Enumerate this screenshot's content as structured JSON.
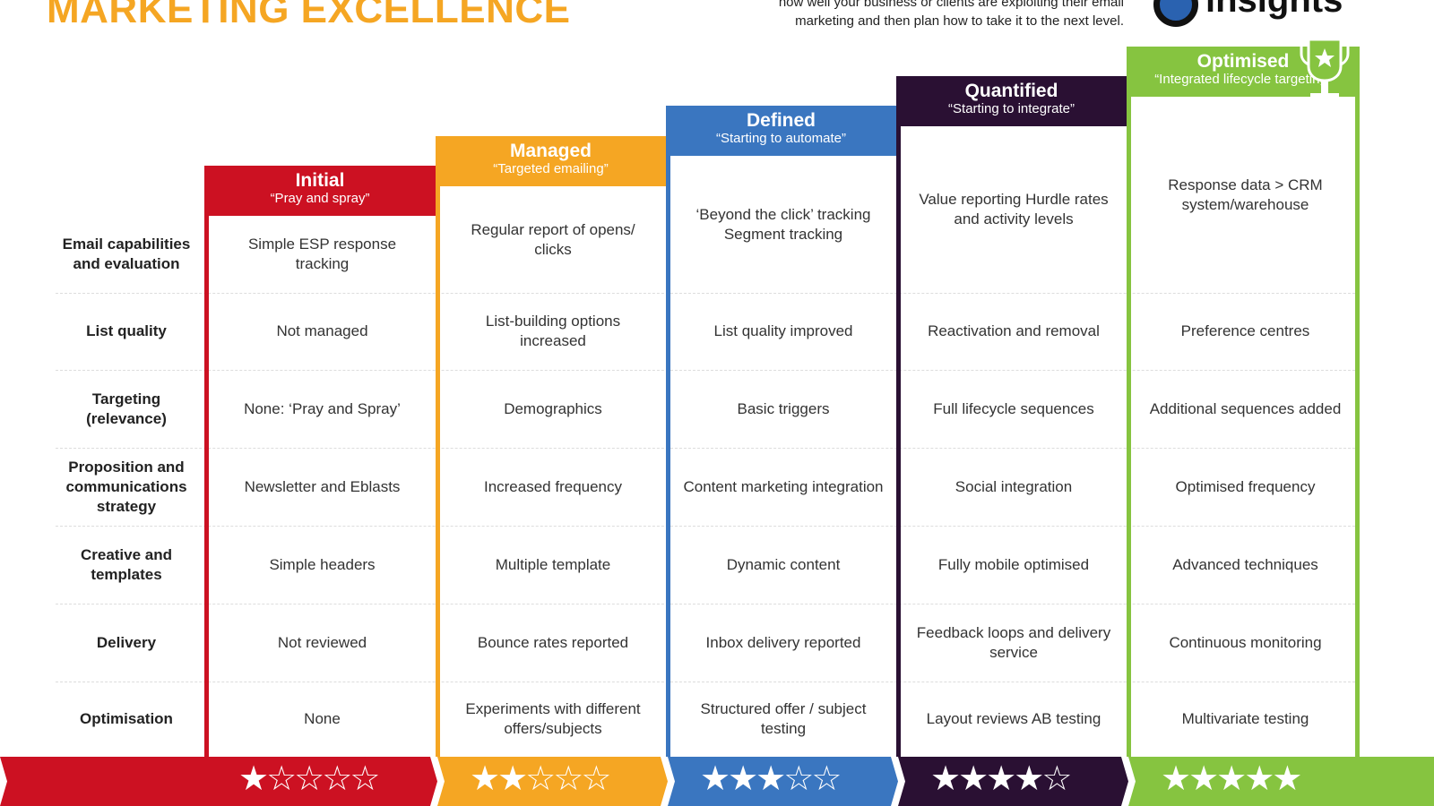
{
  "title": "MARKETING EXCELLENCE",
  "intro": [
    "how well your business or clients are exploiting their email",
    "marketing and then plan how to take it to the next level."
  ],
  "logo_text": "insights",
  "colors": {
    "initial": "#cc1122",
    "managed": "#f5a623",
    "defined": "#3a76c0",
    "quantified": "#2a1033",
    "optimised": "#86c440"
  },
  "rows": [
    "Email capabilities and evaluation",
    "List quality",
    "Targeting (relevance)",
    "Proposition and communications strategy",
    "Creative and templates",
    "Delivery",
    "Optimisation"
  ],
  "levels": [
    {
      "name": "Initial",
      "subtitle": "“Pray and spray”",
      "stars": 1,
      "cells": [
        "Simple ESP response tracking",
        "Not managed",
        "None: ‘Pray and Spray’",
        "Newsletter and Eblasts",
        "Simple headers",
        "Not reviewed",
        "None"
      ]
    },
    {
      "name": "Managed",
      "subtitle": "“Targeted emailing”",
      "stars": 2,
      "cells": [
        "Regular report of opens/ clicks",
        "List-building options increased",
        "Demographics",
        "Increased frequency",
        "Multiple template",
        "Bounce rates reported",
        "Experiments with different offers/subjects"
      ]
    },
    {
      "name": "Defined",
      "subtitle": "“Starting to automate”",
      "stars": 3,
      "cells": [
        "‘Beyond the click’ tracking Segment tracking",
        "List quality improved",
        "Basic triggers",
        "Content marketing integration",
        "Dynamic content",
        "Inbox delivery reported",
        "Structured offer / subject testing"
      ]
    },
    {
      "name": "Quantified",
      "subtitle": "“Starting to integrate”",
      "stars": 4,
      "cells": [
        "Value reporting Hurdle rates and activity levels",
        "Reactivation and removal",
        "Full lifecycle sequences",
        "Social integration",
        "Fully mobile optimised",
        "Feedback loops and delivery service",
        "Layout reviews AB testing"
      ]
    },
    {
      "name": "Optimised",
      "subtitle": "“Integrated lifecycle targeting”",
      "stars": 5,
      "cells": [
        "Response data > CRM system/warehouse",
        "Preference centres",
        "Additional sequences added",
        "Optimised frequency",
        "Advanced techniques",
        "Continuous monitoring",
        "Multivariate testing"
      ]
    }
  ]
}
